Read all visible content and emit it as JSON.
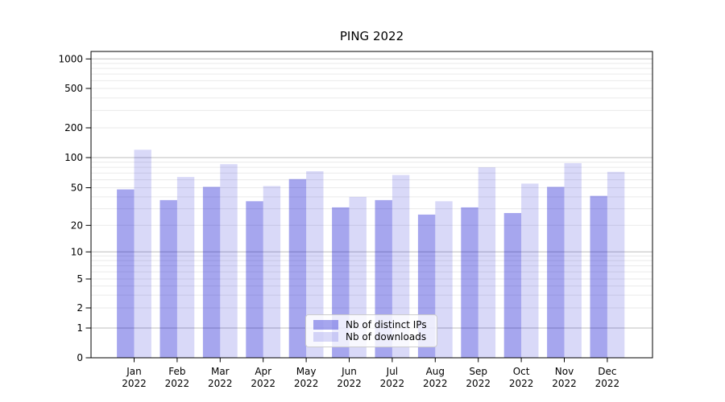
{
  "chart_data": {
    "type": "bar",
    "title": "PING 2022",
    "year": "2022",
    "categories": [
      "Jan",
      "Feb",
      "Mar",
      "Apr",
      "May",
      "Jun",
      "Jul",
      "Aug",
      "Sep",
      "Oct",
      "Nov",
      "Dec"
    ],
    "series": [
      {
        "name": "Nb of distinct IPs",
        "color": "rgba(0,0,205,0.35)",
        "values": [
          48,
          37,
          51,
          36,
          61,
          31,
          37,
          26,
          31,
          27,
          51,
          41
        ]
      },
      {
        "name": "Nb of downloads",
        "color": "rgba(0,0,205,0.15)",
        "values": [
          120,
          64,
          86,
          52,
          73,
          40,
          67,
          36,
          80,
          55,
          88,
          72
        ]
      }
    ],
    "yticks": [
      0,
      1,
      2,
      5,
      10,
      20,
      50,
      100,
      200,
      500,
      1000
    ],
    "ylim": [
      0,
      1200
    ],
    "xlabel": "",
    "ylabel": "",
    "scale": "symlog",
    "grid": "major-and-minor",
    "legend_position": "lower center"
  }
}
